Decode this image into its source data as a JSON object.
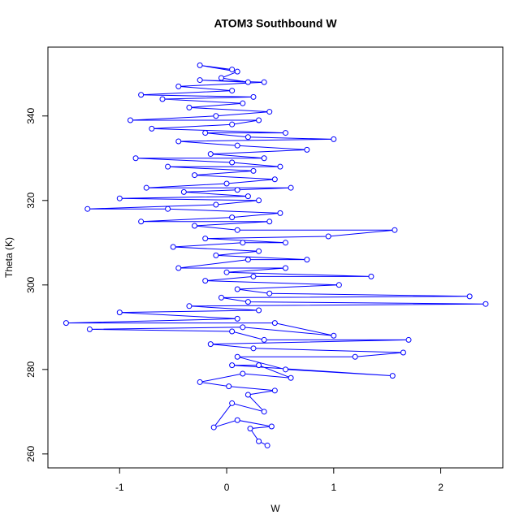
{
  "chart_data": {
    "type": "line",
    "marker": "circle",
    "title": "ATOM3 Southbound W",
    "xlabel": "W",
    "ylabel": "Theta (K)",
    "color": "#0000ff",
    "xlim": [
      -1.67,
      2.58
    ],
    "ylim": [
      256.7,
      356.3
    ],
    "xticks": [
      -1,
      0,
      1,
      2
    ],
    "yticks": [
      260,
      280,
      300,
      320,
      340
    ],
    "series": [
      {
        "name": "W",
        "x": [
          0.38,
          0.3,
          0.22,
          0.42,
          0.1,
          -0.12,
          0.05,
          0.35,
          0.2,
          0.45,
          0.02,
          -0.25,
          0.15,
          0.6,
          0.3,
          0.05,
          1.55,
          0.55,
          0.1,
          1.2,
          1.65,
          0.25,
          -0.15,
          1.7,
          0.35,
          0.05,
          -1.28,
          0.15,
          1.0,
          0.45,
          -1.5,
          0.1,
          -1.0,
          0.3,
          -0.35,
          2.42,
          0.2,
          -0.05,
          2.27,
          0.4,
          0.1,
          1.05,
          -0.2,
          0.25,
          1.35,
          0.0,
          0.55,
          -0.45,
          0.2,
          0.75,
          -0.1,
          0.3,
          -0.5,
          0.15,
          0.55,
          -0.2,
          0.95,
          1.57,
          0.1,
          -0.3,
          0.4,
          -0.8,
          0.05,
          0.5,
          -0.55,
          -1.3,
          -0.1,
          0.3,
          -1.0,
          0.2,
          -0.4,
          0.1,
          0.6,
          -0.75,
          0.0,
          0.45,
          -0.3,
          0.25,
          -0.55,
          0.5,
          0.05,
          -0.85,
          0.35,
          -0.15,
          0.75,
          0.1,
          -0.45,
          1.0,
          0.2,
          -0.2,
          0.55,
          -0.7,
          0.05,
          0.3,
          -0.9,
          -0.1,
          0.4,
          -0.35,
          0.15,
          -0.6,
          0.25,
          -0.8,
          0.05,
          -0.45,
          0.35,
          -0.25,
          0.2,
          -0.05,
          0.1,
          -0.25,
          0.05
        ],
        "values": [
          262,
          263,
          266,
          266.5,
          268,
          266.3,
          272,
          270,
          274,
          275,
          276,
          277,
          279,
          278,
          281,
          281,
          278.5,
          280,
          283,
          283,
          284,
          285,
          286,
          287,
          287,
          289,
          289.5,
          290,
          288,
          291,
          291,
          292,
          293.5,
          294,
          295,
          295.5,
          296,
          297,
          297.3,
          298,
          299,
          300,
          301,
          302,
          302,
          303,
          304,
          304,
          306,
          306,
          307,
          308,
          309,
          310,
          310,
          311,
          311.5,
          313,
          313,
          314,
          315,
          315,
          316,
          317,
          318,
          318,
          319,
          320,
          320.5,
          321,
          322,
          322.5,
          323,
          323,
          324,
          325,
          326,
          327,
          328,
          328,
          329,
          330,
          330,
          331,
          332,
          333,
          334,
          334.5,
          335,
          336,
          336,
          337,
          338,
          339,
          339,
          340,
          341,
          342,
          343,
          344,
          344.5,
          345,
          346,
          347,
          348,
          348.5,
          348,
          349,
          350.5,
          352,
          351
        ]
      }
    ]
  }
}
